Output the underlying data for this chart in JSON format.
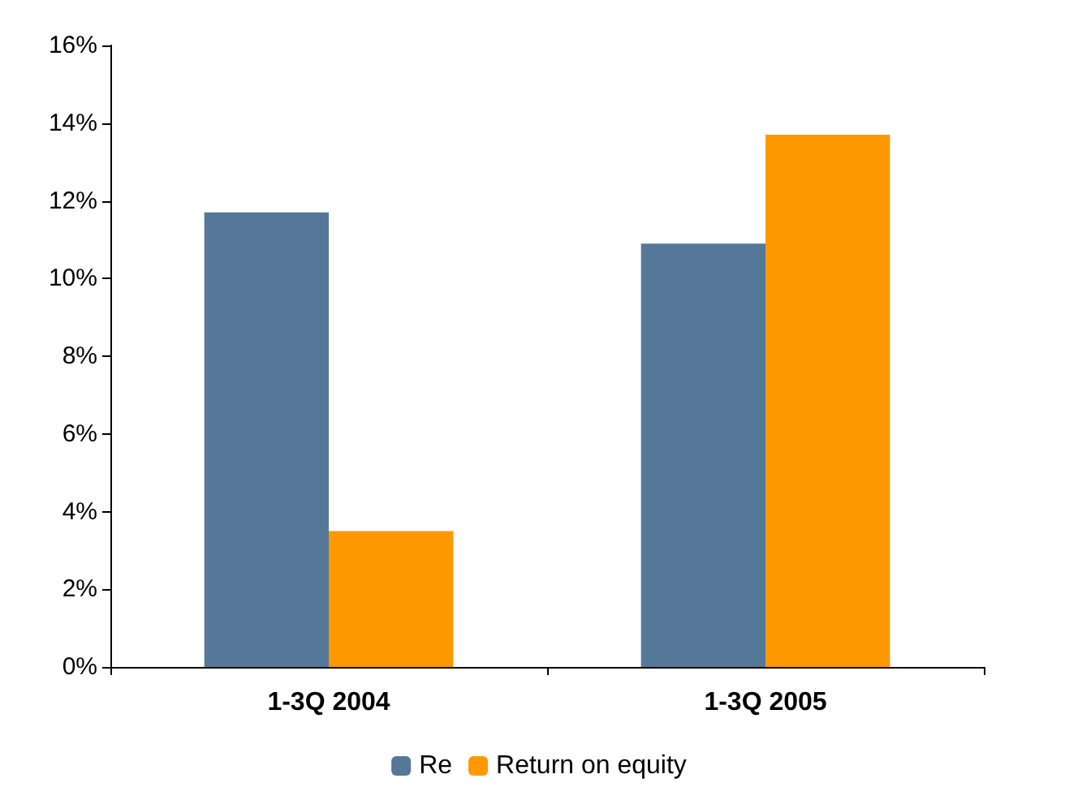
{
  "chart_data": {
    "type": "bar",
    "categories": [
      "1-3Q 2004",
      "1-3Q 2005"
    ],
    "series": [
      {
        "name": "Re",
        "color": "#557898",
        "values": [
          11.7,
          10.9
        ]
      },
      {
        "name": "Return on equity",
        "color": "#ff9900",
        "values": [
          3.5,
          13.7
        ]
      }
    ],
    "ylim": [
      0,
      16
    ],
    "yticks": [
      {
        "value": 0,
        "label": "0%"
      },
      {
        "value": 2,
        "label": "2%"
      },
      {
        "value": 4,
        "label": "4%"
      },
      {
        "value": 6,
        "label": "6%"
      },
      {
        "value": 8,
        "label": "8%"
      },
      {
        "value": 10,
        "label": "10%"
      },
      {
        "value": 12,
        "label": "12%"
      },
      {
        "value": 14,
        "label": "14%"
      },
      {
        "value": 16,
        "label": "16%"
      }
    ],
    "grid": false,
    "legend": "bottom"
  }
}
